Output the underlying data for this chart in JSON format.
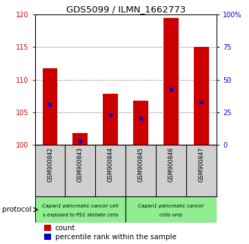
{
  "title": "GDS5099 / ILMN_1662773",
  "samples": [
    "GSM900842",
    "GSM900843",
    "GSM900844",
    "GSM900845",
    "GSM900846",
    "GSM900847"
  ],
  "counts": [
    111.8,
    101.8,
    107.8,
    106.8,
    119.5,
    115.0
  ],
  "percentile_ranks": [
    30.5,
    2.5,
    22.5,
    20.0,
    42.5,
    32.5
  ],
  "ylim_left": [
    100,
    120
  ],
  "ylim_right": [
    0,
    100
  ],
  "yticks_left": [
    100,
    105,
    110,
    115,
    120
  ],
  "ytick_labels_left": [
    "100",
    "105",
    "110",
    "115",
    "120"
  ],
  "yticks_right": [
    0,
    25,
    50,
    75,
    100
  ],
  "ytick_labels_right": [
    "0",
    "25",
    "50",
    "75",
    "100%"
  ],
  "bar_color_red": "#CC0000",
  "bar_color_blue": "#0000CC",
  "group1_label_line1": "Capan1 pancreatic cancer cell",
  "group1_label_line2": "s exposed to PS1 stellate cells",
  "group2_label_line1": "Capan1 pancreatic cancer",
  "group2_label_line2": "cells only",
  "group_color": "#90EE90",
  "sample_box_color": "#d0d0d0",
  "protocol_label": "protocol",
  "legend_red_label": "count",
  "legend_blue_label": "percentile rank within the sample",
  "bar_base": 100,
  "grid_color": "#555555",
  "plot_bg_color": "#ffffff",
  "fig_bg_color": "#ffffff",
  "tick_color_left": "#CC0000",
  "tick_color_right": "#0000CC",
  "bar_width": 0.5,
  "blue_bar_width": 0.12,
  "blue_bar_height": 0.6
}
